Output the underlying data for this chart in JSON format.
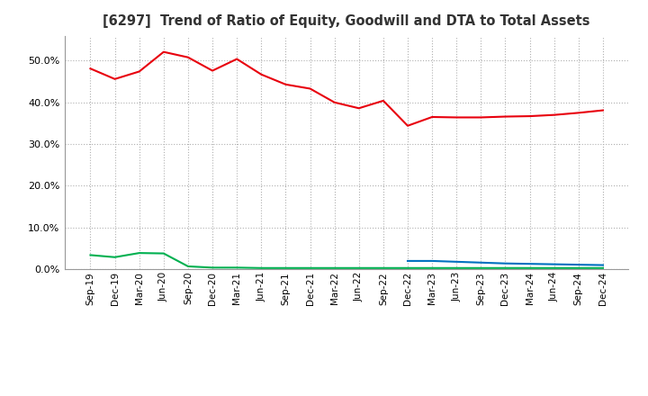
{
  "title": "[6297]  Trend of Ratio of Equity, Goodwill and DTA to Total Assets",
  "x_labels": [
    "Sep-19",
    "Dec-19",
    "Mar-20",
    "Jun-20",
    "Sep-20",
    "Dec-20",
    "Mar-21",
    "Jun-21",
    "Sep-21",
    "Dec-21",
    "Mar-22",
    "Jun-22",
    "Sep-22",
    "Dec-22",
    "Mar-23",
    "Jun-23",
    "Sep-23",
    "Dec-23",
    "Mar-24",
    "Jun-24",
    "Sep-24",
    "Dec-24"
  ],
  "equity": [
    0.481,
    0.456,
    0.474,
    0.521,
    0.508,
    0.476,
    0.504,
    0.467,
    0.443,
    0.433,
    0.4,
    0.386,
    0.404,
    0.344,
    0.365,
    0.364,
    0.364,
    0.366,
    0.367,
    0.37,
    0.375,
    0.381
  ],
  "goodwill": [
    null,
    null,
    null,
    null,
    null,
    null,
    null,
    null,
    null,
    null,
    null,
    null,
    null,
    0.02,
    0.02,
    0.018,
    0.016,
    0.014,
    0.013,
    0.012,
    0.011,
    0.01
  ],
  "dta": [
    0.034,
    0.029,
    0.039,
    0.038,
    0.007,
    0.004,
    0.004,
    0.003,
    0.003,
    0.003,
    0.003,
    0.003,
    0.003,
    0.003,
    0.003,
    0.003,
    0.003,
    0.003,
    0.003,
    0.003,
    0.003,
    0.003
  ],
  "equity_color": "#e8000d",
  "goodwill_color": "#0070c0",
  "dta_color": "#00b050",
  "background_color": "#ffffff",
  "plot_bg_color": "#ffffff",
  "grid_color": "#b0b0b0",
  "ylim": [
    0.0,
    0.56
  ],
  "yticks": [
    0.0,
    0.1,
    0.2,
    0.3,
    0.4,
    0.5
  ]
}
